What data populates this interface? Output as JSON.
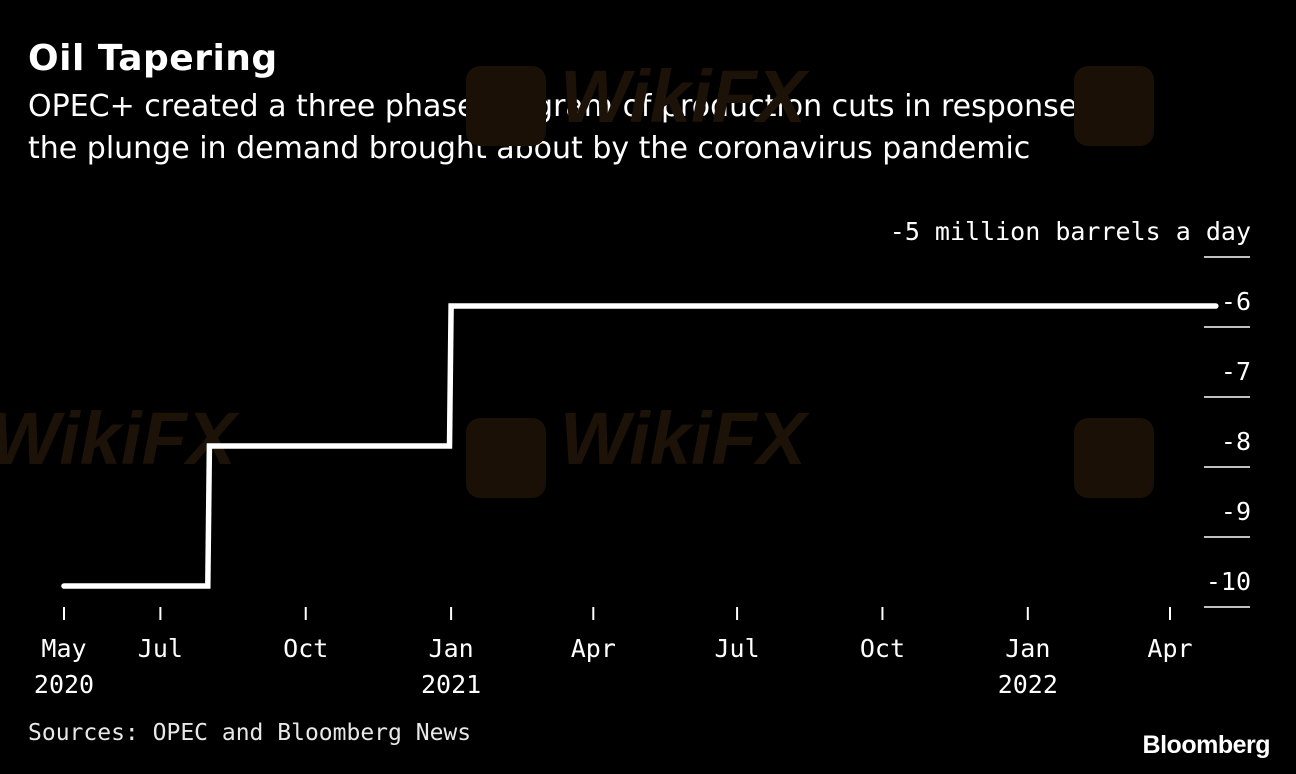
{
  "header": {
    "title": "Oil Tapering",
    "subtitle_line1": "OPEC+ created a three phase program of production cuts in response to",
    "subtitle_line2": "the plunge in demand brought about by the coronavirus pandemic"
  },
  "footer": {
    "source": "Sources: OPEC and Bloomberg News",
    "brand": "Bloomberg"
  },
  "watermark_text": "WikiFX",
  "colors": {
    "background": "#000000",
    "line": "#ffffff",
    "text": "#ffffff",
    "watermark": "#2a1a08"
  },
  "chart_data": {
    "type": "line",
    "step": true,
    "unit_label": "-5 million barrels a day",
    "y_ticks": [
      {
        "value": -5,
        "label": "-5 million barrels a day"
      },
      {
        "value": -6,
        "label": "-6"
      },
      {
        "value": -7,
        "label": "-7"
      },
      {
        "value": -8,
        "label": "-8"
      },
      {
        "value": -9,
        "label": "-9"
      },
      {
        "value": -10,
        "label": "-10"
      }
    ],
    "ylim": [
      -10,
      -5
    ],
    "x_ticks": [
      {
        "date": "2020-05-01",
        "label": "May",
        "year": "2020"
      },
      {
        "date": "2020-07-01",
        "label": "Jul",
        "year": ""
      },
      {
        "date": "2020-10-01",
        "label": "Oct",
        "year": ""
      },
      {
        "date": "2021-01-01",
        "label": "Jan",
        "year": "2021"
      },
      {
        "date": "2021-04-01",
        "label": "Apr",
        "year": ""
      },
      {
        "date": "2021-07-01",
        "label": "Jul",
        "year": ""
      },
      {
        "date": "2021-10-01",
        "label": "Oct",
        "year": ""
      },
      {
        "date": "2022-01-01",
        "label": "Jan",
        "year": "2022"
      },
      {
        "date": "2022-04-01",
        "label": "Apr",
        "year": ""
      }
    ],
    "xlim": [
      "2020-05-01",
      "2022-04-30"
    ],
    "series": [
      {
        "points": [
          {
            "date": "2020-05-01",
            "value": -9.7
          },
          {
            "date": "2020-07-31",
            "value": -9.7
          },
          {
            "date": "2020-08-01",
            "value": -7.7
          },
          {
            "date": "2020-12-31",
            "value": -7.7
          },
          {
            "date": "2021-01-01",
            "value": -5.7
          },
          {
            "date": "2022-04-30",
            "value": -5.7
          }
        ]
      }
    ],
    "grid": false
  }
}
